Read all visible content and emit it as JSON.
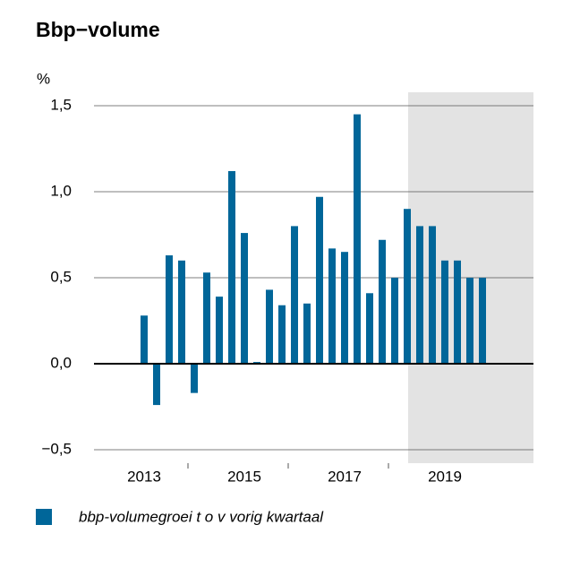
{
  "chart_data": {
    "type": "bar",
    "title": "Bbp−volume",
    "y_label": "%",
    "categories": [
      "2013",
      null,
      null,
      null,
      null,
      null,
      null,
      null,
      "2015",
      null,
      null,
      null,
      null,
      null,
      null,
      null,
      "2017",
      null,
      null,
      null,
      null,
      null,
      null,
      null,
      "2019",
      null,
      null,
      null
    ],
    "series": [
      {
        "name": "bbp-volumegroei t o v  vorig kwartaal",
        "color": "#006699",
        "values": [
          0.28,
          -0.24,
          0.63,
          0.6,
          -0.17,
          0.53,
          0.39,
          1.12,
          0.76,
          0.01,
          0.43,
          0.34,
          0.8,
          0.35,
          0.97,
          0.67,
          0.65,
          1.45,
          0.41,
          0.72,
          0.5,
          0.9,
          0.8,
          0.8,
          0.6,
          0.6,
          0.5,
          0.5
        ]
      }
    ],
    "ylim": [
      -0.55,
      1.57
    ],
    "yticks": [
      {
        "value": -0.5,
        "label": "−0,5"
      },
      {
        "value": 0,
        "label": "0,0"
      },
      {
        "value": 0.5,
        "label": "0,5"
      },
      {
        "value": 1,
        "label": "1,0"
      },
      {
        "value": 1.5,
        "label": "1,5"
      }
    ],
    "grid": true
  }
}
